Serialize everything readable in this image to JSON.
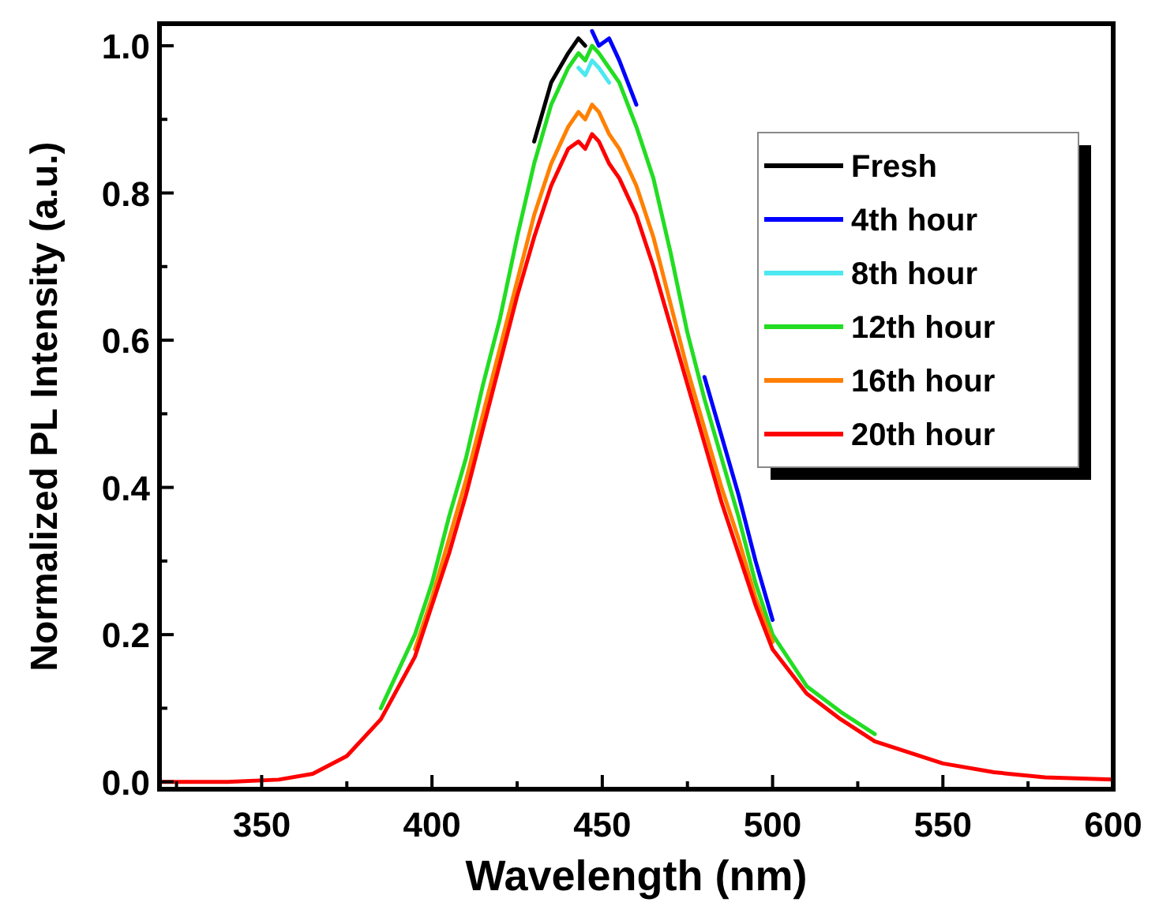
{
  "chart_data": {
    "type": "line",
    "xlabel": "Wavelength (nm)",
    "ylabel": "Normalized PL Intensity (a.u.)",
    "x": [
      320,
      340,
      355,
      365,
      375,
      385,
      395,
      400,
      405,
      410,
      415,
      420,
      425,
      430,
      435,
      440,
      443,
      445,
      447,
      449,
      452,
      455,
      460,
      465,
      470,
      475,
      480,
      485,
      490,
      495,
      500,
      510,
      520,
      530,
      540,
      550,
      565,
      580,
      600
    ],
    "series": [
      {
        "name": "Fresh",
        "color": "#000000",
        "values": [
          null,
          null,
          null,
          null,
          null,
          null,
          null,
          null,
          null,
          null,
          null,
          null,
          null,
          0.87,
          0.95,
          0.99,
          1.01,
          1.0,
          null,
          null,
          null,
          null,
          null,
          null,
          null,
          null,
          null,
          null,
          null,
          null,
          null,
          null,
          null,
          null,
          null,
          null,
          null,
          null,
          null
        ]
      },
      {
        "name": "4th hour",
        "color": "#0000ff",
        "values": [
          null,
          null,
          null,
          null,
          null,
          null,
          null,
          null,
          null,
          null,
          null,
          null,
          null,
          null,
          null,
          null,
          null,
          null,
          1.02,
          1.0,
          1.01,
          0.98,
          0.92,
          null,
          null,
          null,
          0.55,
          0.47,
          0.39,
          0.3,
          0.22,
          null,
          null,
          null,
          null,
          null,
          null,
          null,
          null
        ]
      },
      {
        "name": "8th hour",
        "color": "#4de8f0",
        "values": [
          null,
          null,
          null,
          null,
          null,
          null,
          null,
          null,
          null,
          null,
          null,
          null,
          null,
          null,
          null,
          null,
          0.97,
          0.96,
          0.98,
          0.97,
          0.95,
          null,
          null,
          null,
          null,
          null,
          null,
          null,
          null,
          null,
          null,
          null,
          null,
          null,
          null,
          null,
          null,
          null,
          null
        ]
      },
      {
        "name": "12th hour",
        "color": "#22dd22",
        "values": [
          null,
          null,
          null,
          null,
          null,
          0.1,
          0.2,
          0.27,
          0.36,
          0.44,
          0.54,
          0.63,
          0.74,
          0.84,
          0.92,
          0.97,
          0.99,
          0.98,
          1.0,
          0.99,
          0.97,
          0.95,
          0.89,
          0.82,
          0.72,
          0.61,
          0.52,
          0.44,
          0.36,
          0.27,
          0.2,
          0.13,
          0.095,
          0.065,
          null,
          null,
          null,
          null,
          null
        ]
      },
      {
        "name": "16th hour",
        "color": "#ff8000",
        "values": [
          null,
          null,
          null,
          null,
          null,
          null,
          0.18,
          0.25,
          0.33,
          0.41,
          0.5,
          0.59,
          0.68,
          0.77,
          0.84,
          0.89,
          0.91,
          0.9,
          0.92,
          0.91,
          0.88,
          0.86,
          0.81,
          0.74,
          0.65,
          0.56,
          0.48,
          0.4,
          0.33,
          0.25,
          0.19,
          null,
          null,
          null,
          null,
          null,
          null,
          null,
          null
        ]
      },
      {
        "name": "20th hour",
        "color": "#ff0000",
        "values": [
          0,
          0,
          0.003,
          0.011,
          0.035,
          0.085,
          0.17,
          0.24,
          0.31,
          0.39,
          0.48,
          0.57,
          0.66,
          0.74,
          0.81,
          0.86,
          0.87,
          0.86,
          0.88,
          0.87,
          0.84,
          0.82,
          0.77,
          0.7,
          0.62,
          0.54,
          0.46,
          0.38,
          0.31,
          0.24,
          0.18,
          0.12,
          0.085,
          0.055,
          0.04,
          0.025,
          0.013,
          0.006,
          0.003
        ]
      }
    ],
    "xlim": [
      320,
      600
    ],
    "xticks": [
      {
        "value": 325,
        "label": null
      },
      350,
      {
        "value": 375,
        "label": null
      },
      400,
      {
        "value": 425,
        "label": null
      },
      450,
      {
        "value": 475,
        "label": null
      },
      500,
      {
        "value": 525,
        "label": null
      },
      550,
      {
        "value": 575,
        "label": null
      },
      600
    ],
    "ylim": [
      -0.01,
      1.03
    ],
    "yticks": [
      {
        "value": 0,
        "label": "0.0"
      },
      {
        "value": 0.1,
        "label": null
      },
      {
        "value": 0.2,
        "label": "0.2"
      },
      {
        "value": 0.3,
        "label": null
      },
      {
        "value": 0.4,
        "label": "0.4"
      },
      {
        "value": 0.5,
        "label": null
      },
      {
        "value": 0.6,
        "label": "0.6"
      },
      {
        "value": 0.7,
        "label": null
      },
      {
        "value": 0.8,
        "label": "0.8"
      },
      {
        "value": 0.9,
        "label": null
      },
      {
        "value": 1.0,
        "label": "1.0"
      }
    ],
    "legend": "top right",
    "grid": false,
    "line_style": "solid",
    "marker": "none"
  }
}
